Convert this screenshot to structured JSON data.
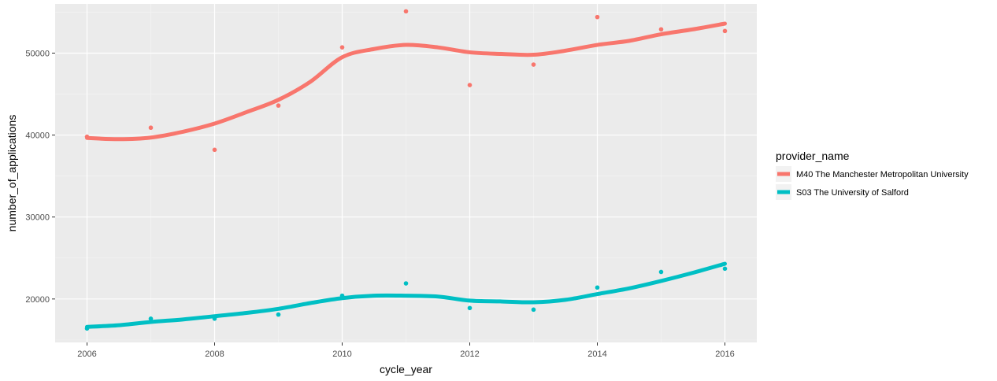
{
  "chart_data": {
    "type": "scatter",
    "xlabel": "cycle_year",
    "ylabel": "number_of_applications",
    "xlim": [
      2005.5,
      2016.5
    ],
    "ylim": [
      14700,
      56000
    ],
    "x_ticks": [
      2006,
      2008,
      2010,
      2012,
      2014,
      2016
    ],
    "x_tick_labels": [
      "2006",
      "2008",
      "2010",
      "2012",
      "2014",
      "2016"
    ],
    "y_ticks": [
      20000,
      30000,
      40000,
      50000
    ],
    "y_tick_labels": [
      "20000",
      "30000",
      "40000",
      "50000"
    ],
    "grid": true,
    "legend": {
      "title": "provider_name",
      "placement": "right"
    },
    "x": [
      2006,
      2007,
      2008,
      2009,
      2010,
      2011,
      2012,
      2013,
      2014,
      2015,
      2016
    ],
    "series": [
      {
        "name": "M40 The Manchester Metropolitan University",
        "color": "#f8766d",
        "values": [
          39800,
          40900,
          38200,
          43600,
          50700,
          55100,
          46100,
          48600,
          54400,
          52900,
          52700
        ],
        "smooth": [
          [
            2006,
            39650
          ],
          [
            2006.5,
            39500
          ],
          [
            2007,
            39700
          ],
          [
            2007.5,
            40400
          ],
          [
            2008,
            41400
          ],
          [
            2008.5,
            42800
          ],
          [
            2009,
            44300
          ],
          [
            2009.5,
            46500
          ],
          [
            2010,
            49500
          ],
          [
            2010.5,
            50500
          ],
          [
            2011,
            51000
          ],
          [
            2011.5,
            50700
          ],
          [
            2012,
            50100
          ],
          [
            2012.5,
            49900
          ],
          [
            2013,
            49800
          ],
          [
            2013.5,
            50300
          ],
          [
            2014,
            51000
          ],
          [
            2014.5,
            51500
          ],
          [
            2015,
            52300
          ],
          [
            2015.5,
            52900
          ],
          [
            2016,
            53600
          ]
        ]
      },
      {
        "name": "S03 The University of Salford",
        "color": "#00bfc4",
        "values": [
          16400,
          17600,
          17600,
          18100,
          20400,
          21900,
          18900,
          18700,
          21400,
          23300,
          23700
        ],
        "smooth": [
          [
            2006,
            16600
          ],
          [
            2006.5,
            16800
          ],
          [
            2007,
            17200
          ],
          [
            2007.5,
            17500
          ],
          [
            2008,
            17900
          ],
          [
            2008.5,
            18300
          ],
          [
            2009,
            18800
          ],
          [
            2009.5,
            19500
          ],
          [
            2010,
            20100
          ],
          [
            2010.5,
            20400
          ],
          [
            2011,
            20400
          ],
          [
            2011.5,
            20300
          ],
          [
            2012,
            19800
          ],
          [
            2012.5,
            19700
          ],
          [
            2013,
            19600
          ],
          [
            2013.5,
            19900
          ],
          [
            2014,
            20600
          ],
          [
            2014.5,
            21300
          ],
          [
            2015,
            22200
          ],
          [
            2015.5,
            23200
          ],
          [
            2016,
            24300
          ]
        ]
      }
    ]
  }
}
